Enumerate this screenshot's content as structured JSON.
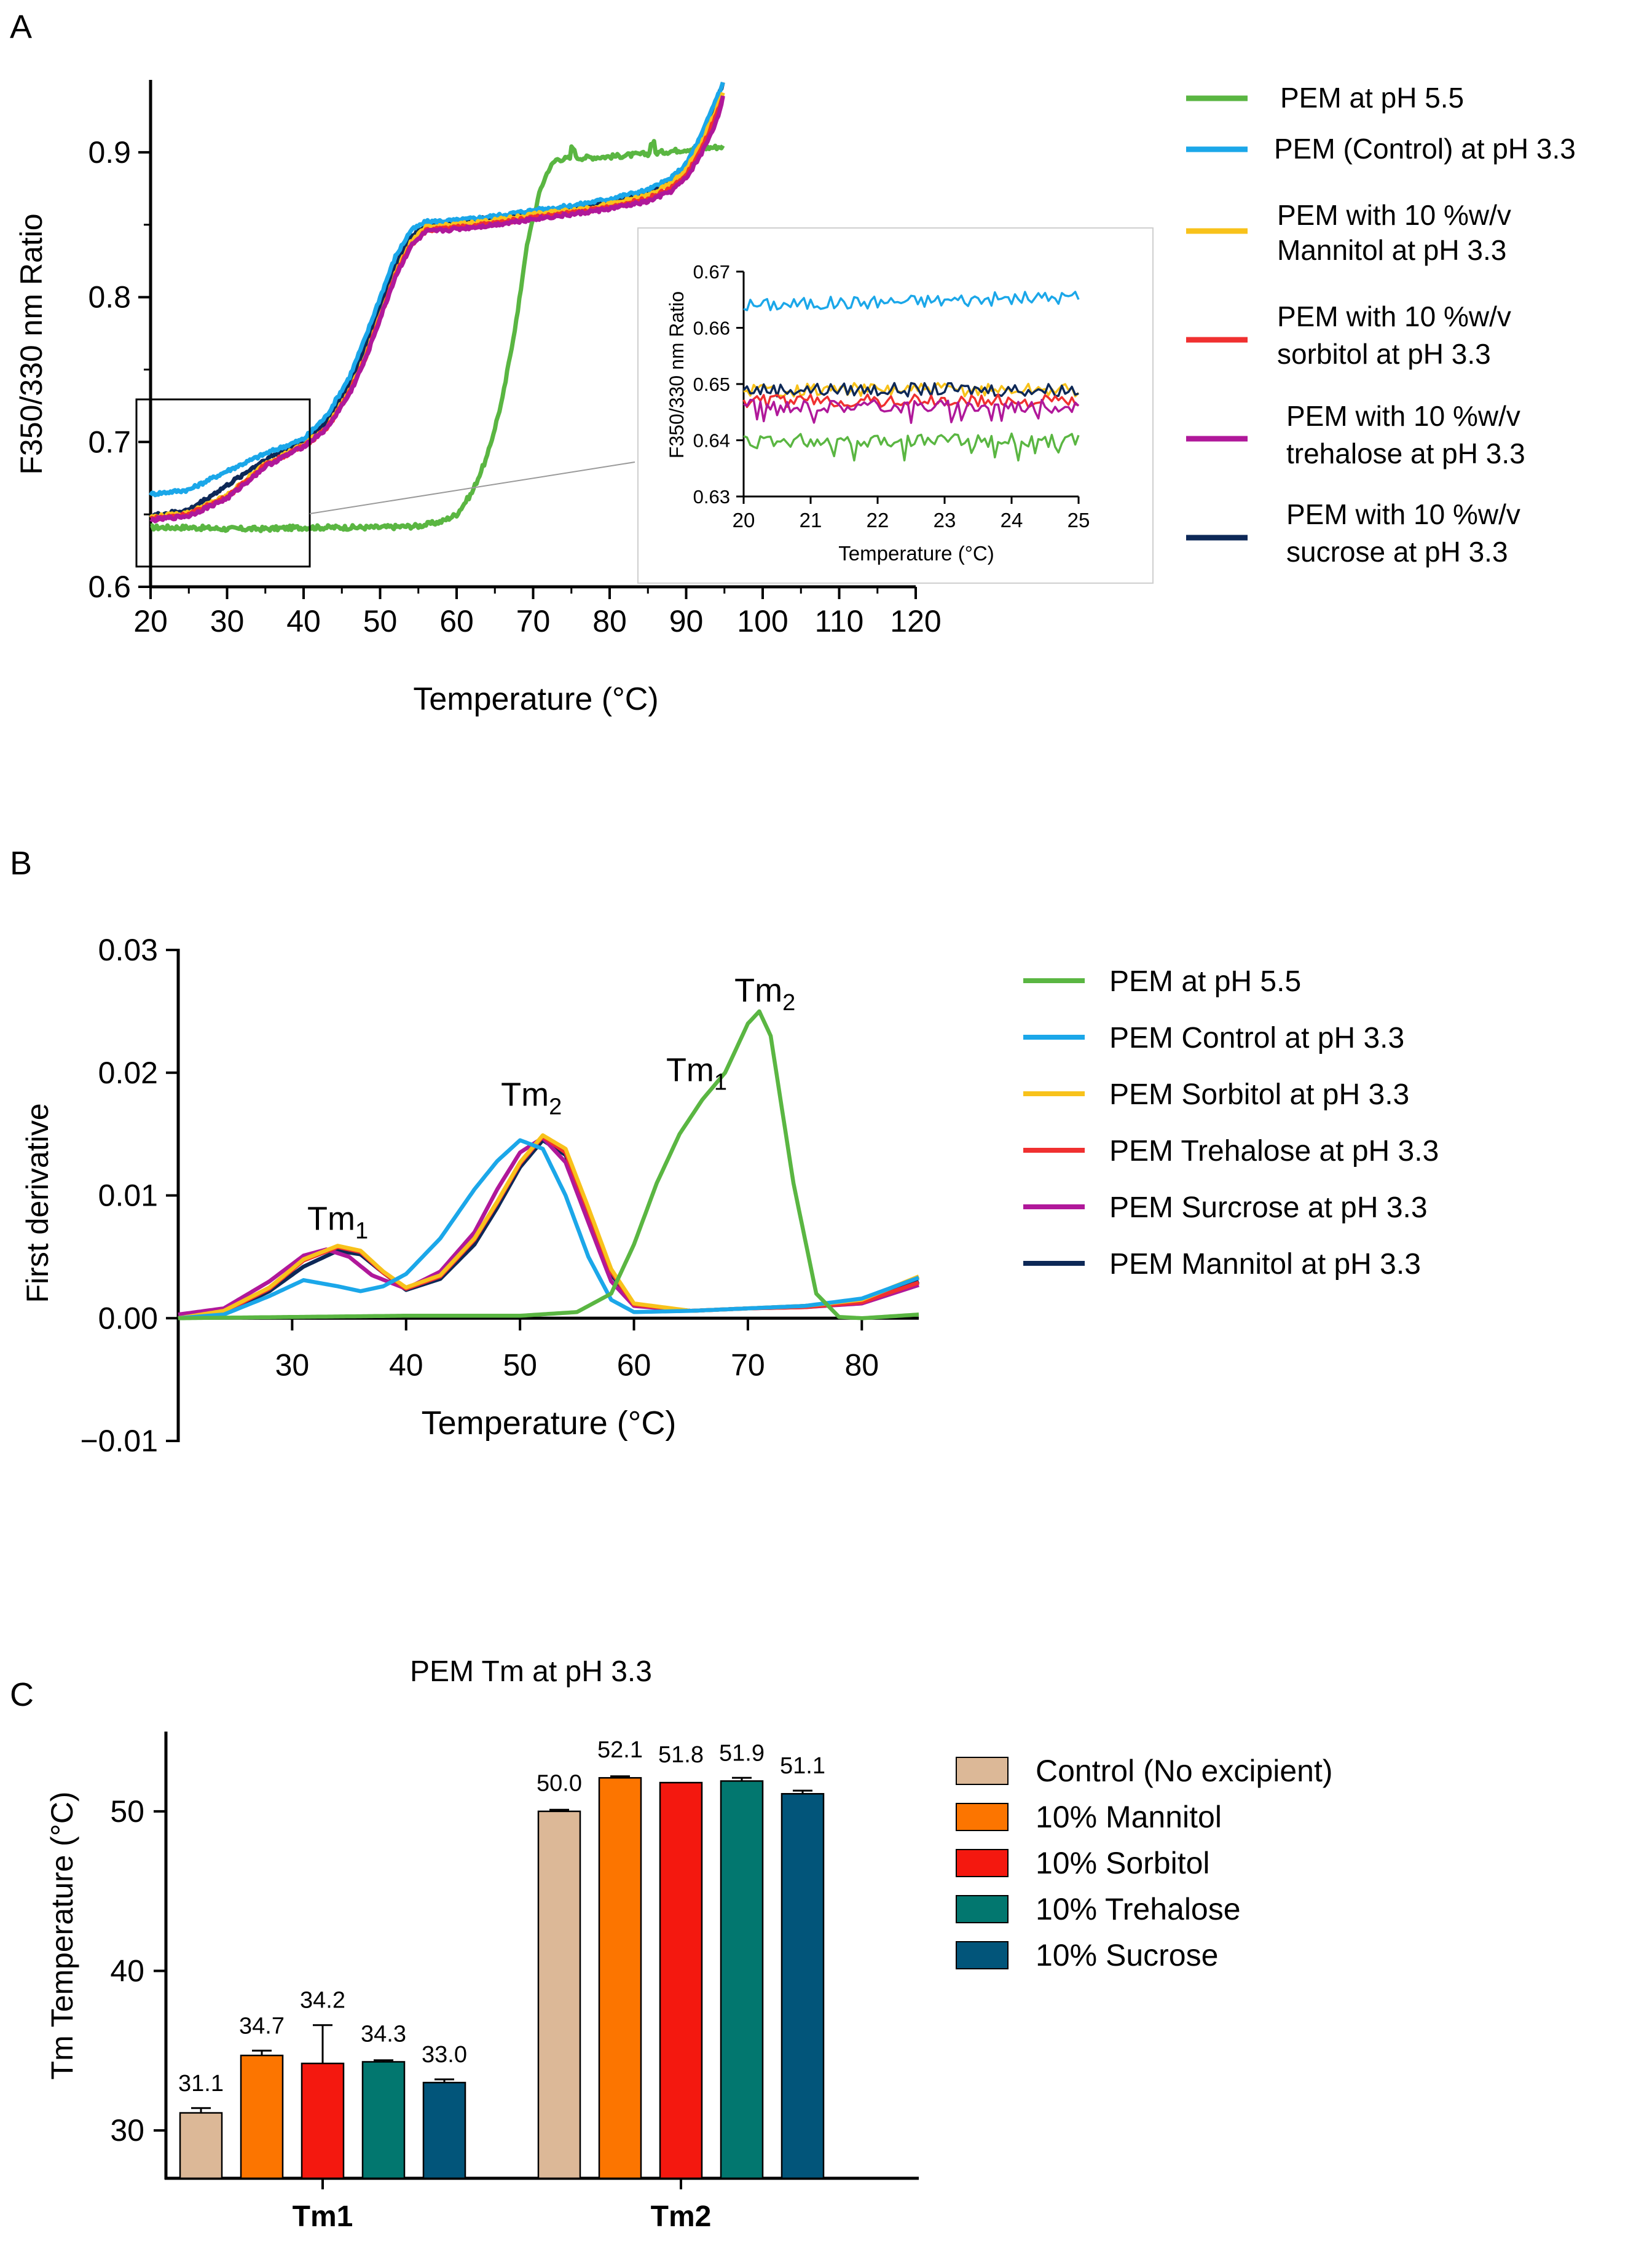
{
  "colors": {
    "green": "#5ab642",
    "blue": "#1ba7e9",
    "orange_yellow": "#f8c21b",
    "red": "#f03030",
    "magenta": "#b0189a",
    "navy": "#0d2857",
    "bar_control": "#dcb897",
    "bar_mannitol": "#fc7500",
    "bar_sorbitol": "#f4180f",
    "bar_trehalose": "#02776f",
    "bar_sucrose": "#02557a"
  },
  "chart_data": [
    {
      "panel": "A",
      "type": "line",
      "xlabel": "Temperature (°C)",
      "ylabel": "F350/330 nm Ratio",
      "xlim": [
        20,
        120
      ],
      "ylim": [
        0.6,
        0.95
      ],
      "xticks": [
        "20",
        "30",
        "40",
        "50",
        "60",
        "70",
        "80",
        "90",
        "100",
        "110",
        "120"
      ],
      "yticks": [
        "0.6",
        "0.7",
        "0.8",
        "0.9"
      ],
      "series": [
        {
          "name": "PEM at pH 5.5",
          "color_key": "green",
          "x": [
            20,
            25,
            30,
            35,
            40,
            45,
            50,
            55,
            58,
            60,
            62,
            64,
            66,
            68,
            69,
            70,
            71,
            72,
            73,
            75,
            80,
            85,
            90,
            95
          ],
          "y": [
            0.641,
            0.641,
            0.64,
            0.64,
            0.641,
            0.641,
            0.641,
            0.642,
            0.645,
            0.65,
            0.665,
            0.69,
            0.73,
            0.79,
            0.83,
            0.855,
            0.875,
            0.888,
            0.895,
            0.896,
            0.897,
            0.899,
            0.902,
            0.904
          ]
        },
        {
          "name": "PEM (Control) at pH 3.3",
          "color_key": "blue",
          "x": [
            20,
            25,
            30,
            35,
            40,
            43,
            46,
            48,
            50,
            52,
            54,
            56,
            60,
            65,
            70,
            75,
            80,
            85,
            88,
            90,
            92,
            94,
            95
          ],
          "y": [
            0.664,
            0.667,
            0.68,
            0.692,
            0.702,
            0.718,
            0.745,
            0.771,
            0.8,
            0.828,
            0.846,
            0.852,
            0.853,
            0.856,
            0.86,
            0.863,
            0.868,
            0.874,
            0.882,
            0.892,
            0.912,
            0.938,
            0.95
          ]
        },
        {
          "name": "PEM with 10 %w/v Mannitol at pH 3.3",
          "color_key": "orange_yellow",
          "x": [
            20,
            25,
            30,
            35,
            40,
            43,
            46,
            48,
            50,
            52,
            54,
            56,
            60,
            65,
            70,
            75,
            80,
            85,
            88,
            90,
            92,
            94,
            95
          ],
          "y": [
            0.648,
            0.651,
            0.663,
            0.685,
            0.698,
            0.71,
            0.735,
            0.758,
            0.787,
            0.816,
            0.838,
            0.848,
            0.85,
            0.853,
            0.857,
            0.86,
            0.864,
            0.87,
            0.878,
            0.888,
            0.906,
            0.93,
            0.943
          ]
        },
        {
          "name": "PEM with 10 %w/v sorbitol at pH 3.3",
          "color_key": "red",
          "x": [
            20,
            25,
            30,
            35,
            40,
            43,
            46,
            48,
            50,
            52,
            54,
            56,
            60,
            65,
            70,
            75,
            80,
            85,
            88,
            90,
            92,
            94,
            95
          ],
          "y": [
            0.647,
            0.65,
            0.662,
            0.684,
            0.697,
            0.709,
            0.734,
            0.757,
            0.786,
            0.815,
            0.836,
            0.846,
            0.848,
            0.851,
            0.855,
            0.858,
            0.862,
            0.868,
            0.875,
            0.884,
            0.902,
            0.926,
            0.94
          ]
        },
        {
          "name": "PEM with 10 %w/v trehalose at pH 3.3",
          "color_key": "magenta",
          "x": [
            20,
            25,
            30,
            35,
            40,
            43,
            46,
            48,
            50,
            52,
            54,
            56,
            60,
            65,
            70,
            75,
            80,
            85,
            88,
            90,
            92,
            94,
            95
          ],
          "y": [
            0.646,
            0.649,
            0.661,
            0.683,
            0.697,
            0.709,
            0.733,
            0.756,
            0.785,
            0.814,
            0.835,
            0.845,
            0.847,
            0.85,
            0.854,
            0.857,
            0.861,
            0.866,
            0.873,
            0.882,
            0.899,
            0.922,
            0.942
          ]
        },
        {
          "name": "PEM with 10 %w/v sucrose at pH 3.3",
          "color_key": "navy",
          "x": [
            20,
            25,
            30,
            35,
            40,
            43,
            46,
            48,
            50,
            52,
            54,
            56,
            60,
            65,
            70,
            75,
            80,
            85,
            88,
            90,
            92,
            94,
            95
          ],
          "y": [
            0.649,
            0.653,
            0.67,
            0.688,
            0.7,
            0.714,
            0.74,
            0.764,
            0.793,
            0.822,
            0.842,
            0.85,
            0.852,
            0.855,
            0.858,
            0.861,
            0.866,
            0.872,
            0.88,
            0.89,
            0.91,
            0.936,
            0.95
          ]
        }
      ],
      "legend_position": "right",
      "inset": {
        "xlabel": "Temperature (°C)",
        "ylabel": "F350/330 nm Ratio",
        "xlim": [
          20,
          25
        ],
        "ylim": [
          0.63,
          0.67
        ],
        "xticks": [
          "20",
          "21",
          "22",
          "23",
          "24",
          "25"
        ],
        "yticks": [
          "0.63",
          "0.64",
          "0.65",
          "0.66",
          "0.67"
        ],
        "levels": [
          {
            "color_key": "blue",
            "mean": 0.664
          },
          {
            "color_key": "orange_yellow",
            "mean": 0.649
          },
          {
            "color_key": "navy",
            "mean": 0.649
          },
          {
            "color_key": "red",
            "mean": 0.647
          },
          {
            "color_key": "magenta",
            "mean": 0.646
          },
          {
            "color_key": "green",
            "mean": 0.64
          }
        ]
      }
    },
    {
      "panel": "B",
      "type": "line",
      "xlabel": "Temperature (°C)",
      "ylabel": "First derivative",
      "xlim": [
        20,
        85
      ],
      "ylim": [
        -0.01,
        0.03
      ],
      "xticks": [
        "30",
        "40",
        "50",
        "60",
        "70",
        "80"
      ],
      "yticks": [
        "−0.01",
        "0.00",
        "0.01",
        "0.02",
        "0.03"
      ],
      "series": [
        {
          "name": "PEM at pH 5.5",
          "color_key": "green",
          "x": [
            20,
            30,
            40,
            50,
            55,
            58,
            60,
            62,
            64,
            66,
            68,
            70,
            71,
            72,
            74,
            76,
            78,
            80,
            85
          ],
          "y": [
            0,
            0.0001,
            0.0002,
            0.0002,
            0.0005,
            0.002,
            0.006,
            0.011,
            0.015,
            0.0178,
            0.02,
            0.024,
            0.025,
            0.023,
            0.011,
            0.002,
            0.0001,
            0,
            0.0003
          ]
        },
        {
          "name": "PEM Control at pH 3.3",
          "color_key": "blue",
          "x": [
            20,
            24,
            28,
            31,
            34,
            36,
            38,
            40,
            43,
            46,
            48,
            50,
            52,
            54,
            56,
            58,
            60,
            65,
            70,
            75,
            80,
            85
          ],
          "y": [
            0,
            0.0003,
            0.0018,
            0.0031,
            0.0026,
            0.0022,
            0.0026,
            0.0036,
            0.0065,
            0.0105,
            0.0128,
            0.0145,
            0.0138,
            0.01,
            0.005,
            0.0015,
            0.0005,
            0.0006,
            0.0008,
            0.001,
            0.0016,
            0.0033
          ]
        },
        {
          "name": "PEM Sorbitol at pH 3.3",
          "color_key": "orange_yellow",
          "x": [
            20,
            24,
            28,
            31,
            34,
            36,
            38,
            40,
            43,
            46,
            48,
            50,
            52,
            54,
            56,
            58,
            60,
            65,
            70,
            75,
            80,
            85
          ],
          "y": [
            0,
            0.0006,
            0.0025,
            0.0048,
            0.0059,
            0.0055,
            0.0038,
            0.0025,
            0.0035,
            0.0065,
            0.0095,
            0.0127,
            0.0149,
            0.0138,
            0.009,
            0.004,
            0.0012,
            0.0006,
            0.0008,
            0.001,
            0.0015,
            0.0034
          ]
        },
        {
          "name": "PEM Trehalose at pH 3.3",
          "color_key": "red",
          "x": [
            20,
            24,
            28,
            31,
            34,
            36,
            38,
            40,
            43,
            46,
            48,
            50,
            52,
            54,
            56,
            58,
            60,
            65,
            70,
            75,
            80,
            85
          ],
          "y": [
            0,
            0.0005,
            0.0024,
            0.0047,
            0.0058,
            0.0054,
            0.0037,
            0.0024,
            0.0034,
            0.0064,
            0.0094,
            0.0126,
            0.0148,
            0.0135,
            0.0087,
            0.0038,
            0.0011,
            0.0006,
            0.0008,
            0.0009,
            0.0013,
            0.0029
          ]
        },
        {
          "name": "PEM Surcrose at pH 3.3",
          "color_key": "magenta",
          "x": [
            20,
            24,
            28,
            31,
            33,
            35,
            37,
            40,
            43,
            46,
            48,
            50,
            52,
            54,
            56,
            58,
            60,
            65,
            70,
            75,
            80,
            85
          ],
          "y": [
            0.0003,
            0.0008,
            0.003,
            0.0051,
            0.0056,
            0.005,
            0.0035,
            0.0024,
            0.0038,
            0.007,
            0.0105,
            0.0135,
            0.0147,
            0.0127,
            0.0078,
            0.003,
            0.001,
            0.0006,
            0.0008,
            0.0009,
            0.0012,
            0.0027
          ]
        },
        {
          "name": "PEM Mannitol at pH 3.3",
          "color_key": "navy",
          "x": [
            20,
            24,
            28,
            31,
            34,
            36,
            38,
            40,
            43,
            46,
            48,
            50,
            52,
            54,
            56,
            58,
            60,
            65,
            70,
            75,
            80,
            85
          ],
          "y": [
            0,
            0.0004,
            0.0022,
            0.0042,
            0.0055,
            0.0052,
            0.0037,
            0.0023,
            0.0032,
            0.006,
            0.009,
            0.0123,
            0.0145,
            0.0133,
            0.0085,
            0.0036,
            0.0011,
            0.0006,
            0.0008,
            0.001,
            0.0014,
            0.003
          ]
        }
      ],
      "annotations": [
        {
          "text": "Tm",
          "sub": "1",
          "color": "#000000",
          "x": 34,
          "y": 0.0072
        },
        {
          "text": "Tm",
          "sub": "2",
          "color": "#000000",
          "x": 51,
          "y": 0.0173
        },
        {
          "text": "Tm",
          "sub": "1",
          "color": "#3cc423",
          "x": 65.5,
          "y": 0.0193
        },
        {
          "text": "Tm",
          "sub": "2",
          "color": "#3cc423",
          "x": 71.5,
          "y": 0.0258
        }
      ],
      "legend_position": "right"
    },
    {
      "panel": "C",
      "type": "bar",
      "title": "PEM Tm at pH 3.3",
      "ylabel": "Tm Temperature (°C)",
      "ylim": [
        27,
        55
      ],
      "yticks": [
        "30",
        "40",
        "50"
      ],
      "categories": [
        "Tm1",
        "Tm2"
      ],
      "series": [
        {
          "name": "Control (No excipient)",
          "color_key": "bar_control",
          "values": [
            31.1,
            50.0
          ],
          "errors": [
            0.3,
            0.1
          ],
          "labels": [
            "31.1",
            "50.0"
          ]
        },
        {
          "name": "10% Mannitol",
          "color_key": "bar_mannitol",
          "values": [
            34.7,
            52.1
          ],
          "errors": [
            0.3,
            0.1
          ],
          "labels": [
            "34.7",
            "52.1"
          ]
        },
        {
          "name": "10% Sorbitol",
          "color_key": "bar_sorbitol",
          "values": [
            34.2,
            51.8
          ],
          "errors": [
            2.4,
            0.0
          ],
          "labels": [
            "34.2",
            "51.8"
          ]
        },
        {
          "name": "10% Trehalose",
          "color_key": "bar_trehalose",
          "values": [
            34.3,
            51.9
          ],
          "errors": [
            0.1,
            0.2
          ],
          "labels": [
            "34.3",
            "51.9"
          ]
        },
        {
          "name": "10% Sucrose",
          "color_key": "bar_sucrose",
          "values": [
            33.0,
            51.1
          ],
          "errors": [
            0.2,
            0.2
          ],
          "labels": [
            "33.0",
            "51.1"
          ]
        }
      ],
      "legend_position": "right"
    }
  ],
  "panels": {
    "a": {
      "label": "A",
      "legend": [
        "PEM at pH 5.5",
        "PEM (Control) at pH 3.3",
        "PEM with 10 %w/v",
        "Mannitol at pH 3.3",
        "PEM with 10 %w/v",
        "sorbitol at pH 3.3",
        "PEM with 10 %w/v",
        "trehalose at pH 3.3",
        "PEM with 10 %w/v",
        "sucrose at pH 3.3"
      ]
    },
    "b": {
      "label": "B"
    },
    "c": {
      "label": "C"
    }
  }
}
